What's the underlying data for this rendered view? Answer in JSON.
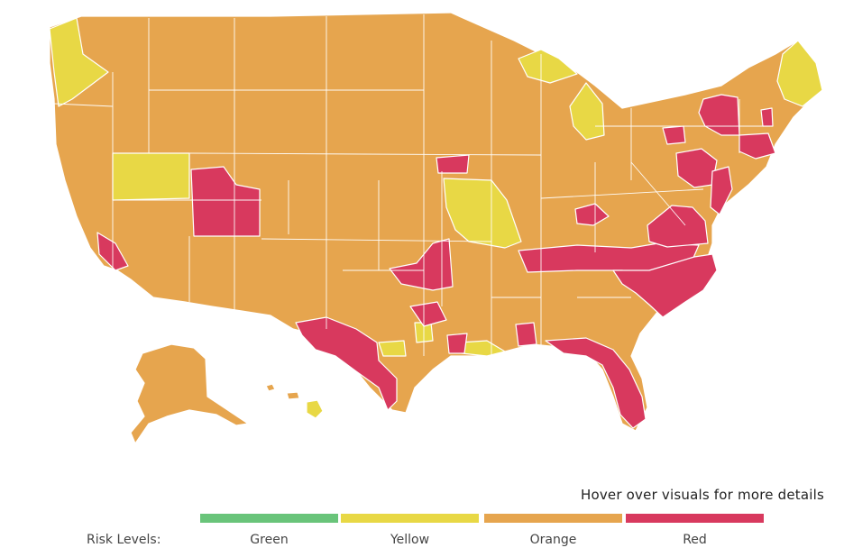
{
  "colors": {
    "green": "#69c47a",
    "yellow": "#e8d845",
    "orange": "#e6a54e",
    "red": "#d8395e"
  },
  "hover_note": "Hover over visuals for more details",
  "legend": {
    "label": "Risk Levels:",
    "items": [
      {
        "label": "Green",
        "color": "#69c47a"
      },
      {
        "label": "Yellow",
        "color": "#e8d845"
      },
      {
        "label": "Orange",
        "color": "#e6a54e"
      },
      {
        "label": "Red",
        "color": "#d8395e"
      }
    ]
  }
}
